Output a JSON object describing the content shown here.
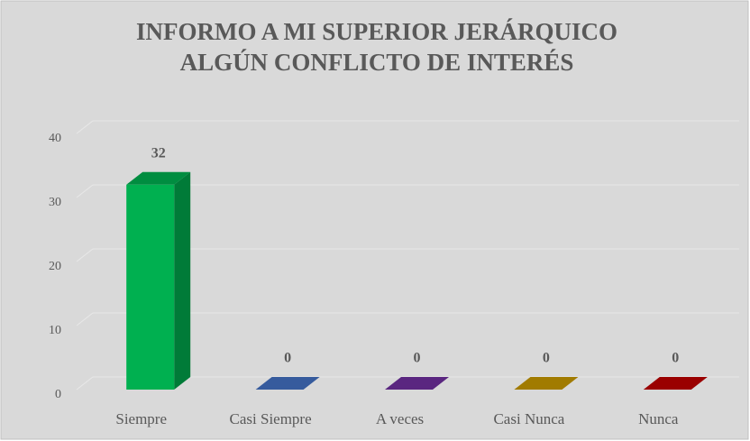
{
  "chart_data": {
    "type": "bar3d",
    "title": [
      "INFORMO A MI SUPERIOR JERÁRQUICO",
      "ALGÚN  CONFLICTO DE INTERÉS"
    ],
    "categories": [
      "Siempre",
      "Casi Siempre",
      "A veces",
      "Casi Nunca",
      "Nunca"
    ],
    "values": [
      32,
      0,
      0,
      0,
      0
    ],
    "colors": [
      "#00b050",
      "#4472c4",
      "#7030a0",
      "#c99a00",
      "#c00000"
    ],
    "ylim": [
      0,
      40
    ],
    "yticks": [
      0,
      10,
      20,
      30,
      40
    ],
    "grid": true
  }
}
